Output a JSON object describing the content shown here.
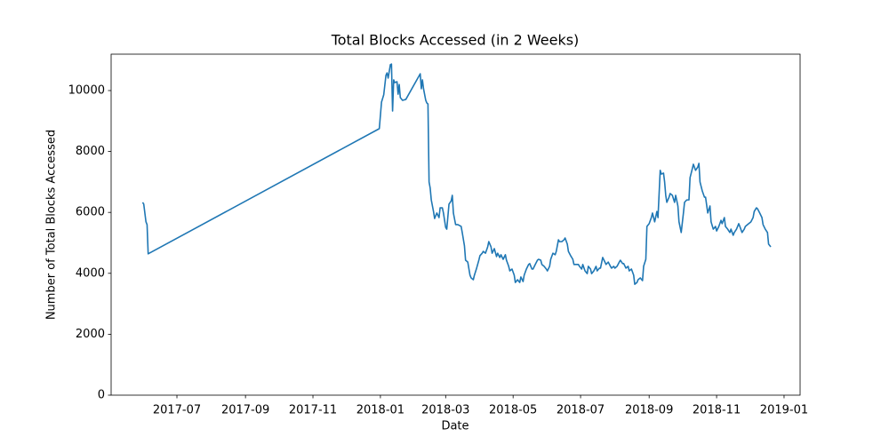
{
  "chart_data": {
    "type": "line",
    "title": "Total Blocks Accessed (in 2 Weeks)",
    "xlabel": "Date",
    "ylabel": "Number of Total Blocks Accessed",
    "color": "#1f77b4",
    "grid": false,
    "x": [
      17317,
      17318,
      17320,
      17321,
      17322,
      17531,
      17533,
      17535,
      17537,
      17538,
      17539,
      17541,
      17542,
      17543,
      17544,
      17545,
      17547,
      17548,
      17549,
      17550,
      17552,
      17555,
      17568,
      17569,
      17570,
      17571,
      17573,
      17574,
      17575,
      17576,
      17577,
      17578,
      17580,
      17581,
      17583,
      17585,
      17586,
      17588,
      17589,
      17591,
      17592,
      17594,
      17596,
      17597,
      17598,
      17600,
      17602,
      17605,
      17606,
      17608,
      17609,
      17611,
      17613,
      17614,
      17616,
      17617,
      17619,
      17621,
      17622,
      17624,
      17625,
      17627,
      17629,
      17630,
      17632,
      17633,
      17635,
      17637,
      17638,
      17640,
      17641,
      17643,
      17645,
      17646,
      17648,
      17649,
      17651,
      17653,
      17654,
      17656,
      17658,
      17659,
      17661,
      17662,
      17664,
      17666,
      17667,
      17669,
      17670,
      17672,
      17674,
      17675,
      17677,
      17678,
      17680,
      17682,
      17683,
      17685,
      17686,
      17688,
      17690,
      17691,
      17693,
      17694,
      17696,
      17698,
      17699,
      17701,
      17702,
      17704,
      17706,
      17707,
      17709,
      17711,
      17712,
      17714,
      17715,
      17717,
      17719,
      17720,
      17722,
      17723,
      17725,
      17727,
      17728,
      17730,
      17731,
      17733,
      17735,
      17736,
      17738,
      17740,
      17741,
      17743,
      17744,
      17746,
      17748,
      17749,
      17751,
      17752,
      17754,
      17756,
      17757,
      17759,
      17761,
      17762,
      17764,
      17765,
      17767,
      17769,
      17770,
      17772,
      17773,
      17775,
      17777,
      17778,
      17780,
      17782,
      17783,
      17785,
      17786,
      17788,
      17789,
      17790,
      17791,
      17793,
      17794,
      17796,
      17798,
      17799,
      17801,
      17802,
      17804,
      17806,
      17807,
      17809,
      17811,
      17812,
      17814,
      17815,
      17817,
      17819,
      17820,
      17821,
      17823,
      17825,
      17826,
      17828,
      17830,
      17831,
      17833,
      17835,
      17836,
      17838,
      17840,
      17841,
      17843,
      17844,
      17846,
      17848,
      17849,
      17851,
      17852,
      17854,
      17856,
      17857,
      17859,
      17861,
      17862,
      17864,
      17865,
      17867,
      17869,
      17870,
      17872,
      17873,
      17875,
      17877,
      17878,
      17880,
      17882,
      17883,
      17885
    ],
    "values": [
      6330,
      6270,
      5690,
      5600,
      4640,
      8750,
      9620,
      9860,
      10500,
      10580,
      10410,
      10850,
      10870,
      9330,
      10350,
      10260,
      10290,
      9880,
      10200,
      9770,
      9680,
      9710,
      10550,
      10060,
      10350,
      10060,
      9680,
      9590,
      9560,
      7000,
      6800,
      6410,
      6030,
      5800,
      5980,
      5830,
      6150,
      6150,
      5980,
      5510,
      5450,
      6270,
      6380,
      6560,
      5980,
      5600,
      5600,
      5540,
      5340,
      4900,
      4430,
      4370,
      3940,
      3850,
      3790,
      3940,
      4170,
      4430,
      4580,
      4660,
      4720,
      4660,
      4870,
      5040,
      4870,
      4660,
      4810,
      4550,
      4660,
      4520,
      4610,
      4460,
      4610,
      4430,
      4230,
      4080,
      4140,
      3940,
      3700,
      3790,
      3700,
      3880,
      3730,
      3940,
      4140,
      4290,
      4320,
      4140,
      4140,
      4290,
      4430,
      4460,
      4430,
      4290,
      4230,
      4140,
      4080,
      4230,
      4460,
      4660,
      4610,
      4720,
      5100,
      5040,
      5040,
      5100,
      5160,
      4960,
      4720,
      4580,
      4460,
      4290,
      4290,
      4290,
      4230,
      4140,
      4290,
      4080,
      3990,
      4230,
      4140,
      3990,
      4080,
      4230,
      4080,
      4170,
      4170,
      4520,
      4370,
      4290,
      4370,
      4230,
      4170,
      4230,
      4170,
      4230,
      4370,
      4430,
      4320,
      4320,
      4170,
      4230,
      4080,
      4140,
      3940,
      3640,
      3700,
      3790,
      3850,
      3760,
      4230,
      4460,
      5540,
      5630,
      5830,
      5980,
      5690,
      6030,
      5830,
      7380,
      7260,
      7290,
      7000,
      6560,
      6330,
      6500,
      6620,
      6560,
      6330,
      6560,
      6210,
      5690,
      5340,
      5980,
      6330,
      6410,
      6410,
      7140,
      7430,
      7580,
      7380,
      7490,
      7610,
      7000,
      6710,
      6500,
      6500,
      5980,
      6210,
      5690,
      5450,
      5540,
      5390,
      5540,
      5740,
      5630,
      5830,
      5540,
      5450,
      5340,
      5450,
      5250,
      5340,
      5450,
      5630,
      5540,
      5340,
      5450,
      5540,
      5600,
      5630,
      5690,
      5830,
      6030,
      6150,
      6120,
      5980,
      5830,
      5600,
      5450,
      5340,
      4960,
      4870
    ],
    "xlim": [
      17288.5,
      17911.5
    ],
    "xticks": [
      {
        "value": 17348,
        "label": "2017-07"
      },
      {
        "value": 17410,
        "label": "2017-09"
      },
      {
        "value": 17471,
        "label": "2017-11"
      },
      {
        "value": 17532,
        "label": "2018-01"
      },
      {
        "value": 17591,
        "label": "2018-03"
      },
      {
        "value": 17652,
        "label": "2018-05"
      },
      {
        "value": 17713,
        "label": "2018-07"
      },
      {
        "value": 17775,
        "label": "2018-09"
      },
      {
        "value": 17836,
        "label": "2018-11"
      },
      {
        "value": 17897,
        "label": "2019-01"
      }
    ],
    "ylim": [
      0,
      11195
    ],
    "yticks": [
      0,
      2000,
      4000,
      6000,
      8000,
      10000
    ]
  }
}
